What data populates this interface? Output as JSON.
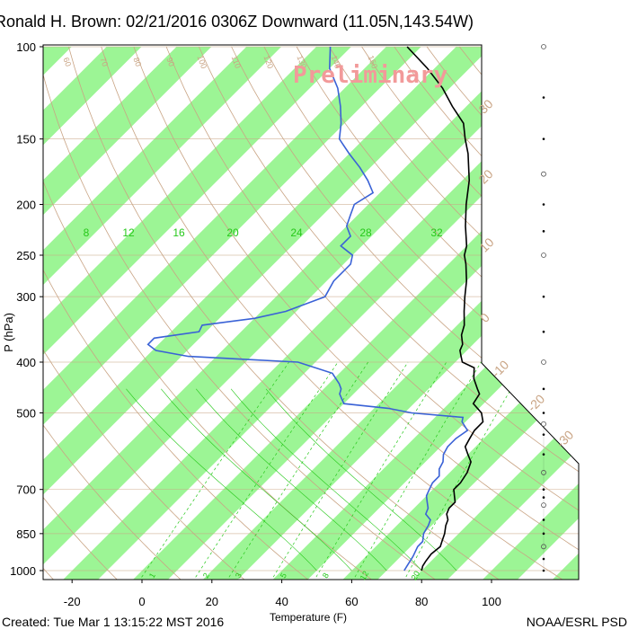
{
  "title": "Ronald H. Brown: 02/21/2016 0306Z Downward (11.05N,143.54W)",
  "watermark": "Preliminary",
  "footer_left": "Created: Tue Mar  1 13:15:22 MST 2016",
  "footer_right": "NOAA/ESRL PSD",
  "colors": {
    "green_band": "#9cf595",
    "temperature_line": "#000000",
    "dewpoint_line": "#3a62d6",
    "dry_adiabat": "#c9a484",
    "mixing_ratio": "#26c81a",
    "watermark": "#f29a9a"
  },
  "chart_data": {
    "type": "skew-t",
    "xlabel": "Temperature (F)",
    "ylabel": "P (hPa)",
    "x_ticks": [
      "-20",
      "0",
      "20",
      "40",
      "60",
      "80",
      "100"
    ],
    "y_ticks": [
      "100",
      "150",
      "200",
      "250",
      "300",
      "400",
      "500",
      "700",
      "850",
      "1000"
    ],
    "isotherm_labels": [
      "8",
      "12",
      "16",
      "20",
      "24",
      "28",
      "32"
    ],
    "right_temperature_labels": [
      "30",
      "20",
      "10",
      "0",
      "-10",
      "-20",
      "-30"
    ],
    "dry_adiabat_labels": [
      "60",
      "70",
      "80",
      "90",
      "100",
      "110",
      "120",
      "130",
      "140",
      "150"
    ],
    "mixing_ratio_labels": [
      "1",
      "2",
      "3",
      "5",
      "8",
      "12",
      "20"
    ],
    "temperature": [
      [
        1000,
        80
      ],
      [
        980,
        79
      ],
      [
        960,
        78.5
      ],
      [
        930,
        78
      ],
      [
        900,
        78.5
      ],
      [
        880,
        77.5
      ],
      [
        850,
        76
      ],
      [
        820,
        74
      ],
      [
        800,
        73
      ],
      [
        780,
        71
      ],
      [
        760,
        70
      ],
      [
        740,
        70
      ],
      [
        720,
        68
      ],
      [
        700,
        66
      ],
      [
        680,
        66
      ],
      [
        650,
        65
      ],
      [
        620,
        63
      ],
      [
        600,
        60
      ],
      [
        580,
        57
      ],
      [
        560,
        56
      ],
      [
        540,
        55
      ],
      [
        520,
        55
      ],
      [
        500,
        52
      ],
      [
        480,
        47
      ],
      [
        460,
        46
      ],
      [
        450,
        44
      ],
      [
        430,
        40
      ],
      [
        410,
        37
      ],
      [
        400,
        32
      ],
      [
        390,
        30
      ],
      [
        380,
        28
      ],
      [
        370,
        27
      ],
      [
        355,
        24
      ],
      [
        340,
        22
      ],
      [
        320,
        18
      ],
      [
        300,
        14
      ],
      [
        280,
        10
      ],
      [
        260,
        5
      ],
      [
        250,
        2
      ],
      [
        240,
        0
      ],
      [
        220,
        -6
      ],
      [
        200,
        -12
      ],
      [
        180,
        -18
      ],
      [
        160,
        -26
      ],
      [
        150,
        -31
      ],
      [
        140,
        -36
      ],
      [
        130,
        -44
      ],
      [
        120,
        -52
      ],
      [
        110,
        -62
      ],
      [
        100,
        -74
      ]
    ],
    "dewpoint": [
      [
        1000,
        75
      ],
      [
        980,
        74.5
      ],
      [
        960,
        74
      ],
      [
        940,
        73.5
      ],
      [
        900,
        72
      ],
      [
        880,
        72
      ],
      [
        850,
        70
      ],
      [
        820,
        69
      ],
      [
        800,
        68
      ],
      [
        780,
        65
      ],
      [
        760,
        64
      ],
      [
        740,
        62
      ],
      [
        720,
        60
      ],
      [
        700,
        59
      ],
      [
        680,
        58
      ],
      [
        660,
        58
      ],
      [
        640,
        56
      ],
      [
        620,
        55
      ],
      [
        600,
        53
      ],
      [
        580,
        52
      ],
      [
        560,
        52
      ],
      [
        540,
        53
      ],
      [
        520,
        49
      ],
      [
        510,
        48
      ],
      [
        500,
        32
      ],
      [
        490,
        24
      ],
      [
        480,
        10
      ],
      [
        470,
        8
      ],
      [
        460,
        6
      ],
      [
        450,
        5
      ],
      [
        440,
        3
      ],
      [
        420,
        -2
      ],
      [
        400,
        -15
      ],
      [
        390,
        -48
      ],
      [
        380,
        -59
      ],
      [
        370,
        -63
      ],
      [
        360,
        -63
      ],
      [
        350,
        -52
      ],
      [
        340,
        -53
      ],
      [
        330,
        -40
      ],
      [
        320,
        -33
      ],
      [
        300,
        -26
      ],
      [
        280,
        -28
      ],
      [
        260,
        -28
      ],
      [
        250,
        -30
      ],
      [
        240,
        -36
      ],
      [
        230,
        -36
      ],
      [
        220,
        -40
      ],
      [
        210,
        -42
      ],
      [
        200,
        -44
      ],
      [
        190,
        -42
      ],
      [
        180,
        -47
      ],
      [
        170,
        -53
      ],
      [
        160,
        -60
      ],
      [
        150,
        -67
      ],
      [
        140,
        -71
      ],
      [
        130,
        -76
      ],
      [
        120,
        -82
      ],
      [
        110,
        -90
      ],
      [
        100,
        -96
      ]
    ],
    "wind_barb_pressures": [
      100,
      125,
      150,
      175,
      200,
      225,
      250,
      300,
      350,
      400,
      450,
      500,
      525,
      550,
      600,
      650,
      700,
      725,
      750,
      800,
      850,
      900,
      950,
      1000
    ]
  }
}
